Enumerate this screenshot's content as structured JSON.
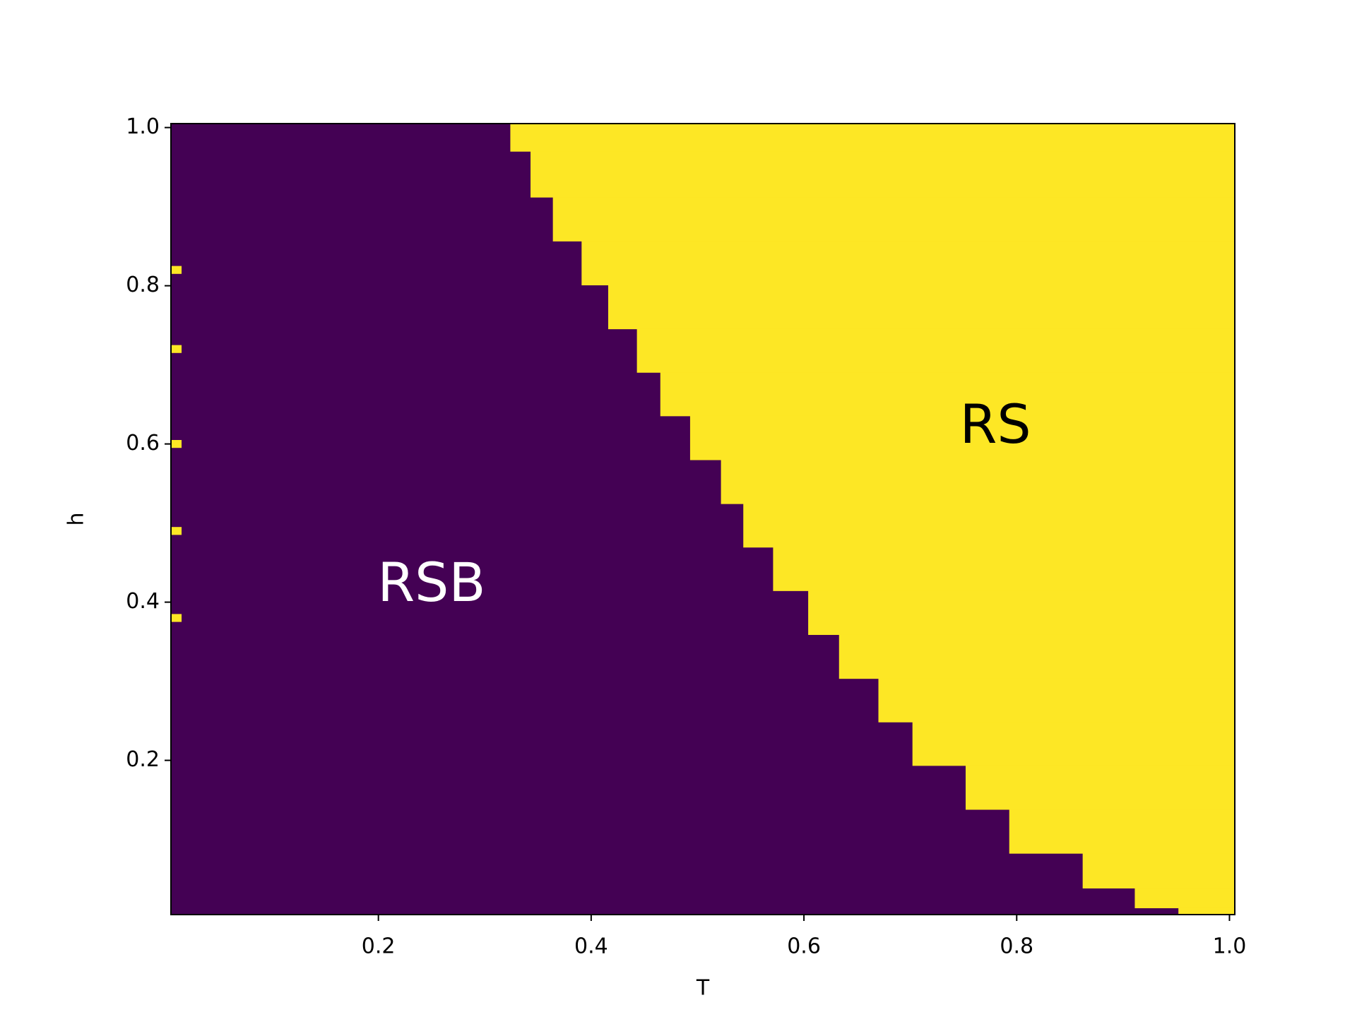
{
  "chart_data": {
    "type": "phase",
    "x_label": "T",
    "y_label": "h",
    "xlim": [
      0.005,
      1.005
    ],
    "ylim": [
      0.005,
      1.005
    ],
    "xticks": [
      0.2,
      0.4,
      0.6,
      0.8,
      {
        "value": 1,
        "label": "1.0"
      }
    ],
    "yticks": [
      0.2,
      0.4,
      0.6,
      0.8,
      {
        "value": 1,
        "label": "1.0"
      }
    ],
    "color_below": "#440154",
    "color_above": "#fde725",
    "x": [
      0.324,
      0.343,
      0.364,
      0.391,
      0.416,
      0.443,
      0.465,
      0.493,
      0.522,
      0.543,
      0.571,
      0.604,
      0.633,
      0.67,
      0.702,
      0.752,
      0.793,
      0.862,
      0.911,
      0.952
    ],
    "values": [
      1.0,
      0.94,
      0.884,
      0.829,
      0.773,
      0.718,
      0.663,
      0.608,
      0.552,
      0.497,
      0.442,
      0.387,
      0.331,
      0.276,
      0.221,
      0.166,
      0.11,
      0.055,
      0.022,
      0.005
    ],
    "spots": {
      "x": [
        0.01,
        0.01,
        0.01,
        0.01,
        0.01
      ],
      "values": [
        0.82,
        0.72,
        0.6,
        0.49,
        0.38
      ]
    },
    "annotations": [
      {
        "text": "RSB",
        "x": 0.25,
        "y": 0.42,
        "color": "#ffffff"
      },
      {
        "text": "RS",
        "x": 0.78,
        "y": 0.62,
        "color": "#000000"
      }
    ]
  }
}
